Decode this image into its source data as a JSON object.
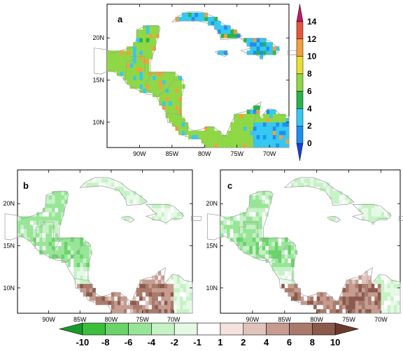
{
  "panels": [
    {
      "id": "a",
      "label": "a",
      "type": "absolute"
    },
    {
      "id": "b",
      "label": "b",
      "type": "difference"
    },
    {
      "id": "c",
      "label": "c",
      "type": "difference"
    }
  ],
  "axes": {
    "lon_ticks": [
      "90W",
      "85W",
      "80W",
      "75W",
      "70W"
    ],
    "lon_values": [
      -90,
      -85,
      -80,
      -75,
      -70
    ],
    "lat_ticks_a": [
      "20N",
      "15N",
      "10N"
    ],
    "lat_ticks_bc": [
      "20N",
      "15N",
      "10N"
    ],
    "lat_values": [
      20,
      15,
      10
    ],
    "lon_range": [
      -95,
      -67
    ],
    "lat_range": [
      7,
      24
    ]
  },
  "colorbar_a": {
    "labels": [
      "0",
      "2",
      "4",
      "6",
      "8",
      "10",
      "12",
      "14"
    ],
    "colors": [
      "#1a3fd8",
      "#1e8ef0",
      "#35c8f2",
      "#27b44a",
      "#8fd845",
      "#e8e030",
      "#f1a13a",
      "#e5563d",
      "#c1186a"
    ]
  },
  "colorbar_bc": {
    "labels": [
      "-10",
      "-8",
      "-6",
      "-4",
      "-2",
      "-1",
      "1",
      "2",
      "4",
      "6",
      "8",
      "10"
    ],
    "colors": [
      "#1a9a2a",
      "#3bbf3b",
      "#6ad46a",
      "#98e598",
      "#c6f2c6",
      "#e6f9e6",
      "#ffffff",
      "#f3e2de",
      "#e0c4bc",
      "#c69c90",
      "#a97a6c",
      "#8b5a4c",
      "#6b3a2c"
    ]
  }
}
